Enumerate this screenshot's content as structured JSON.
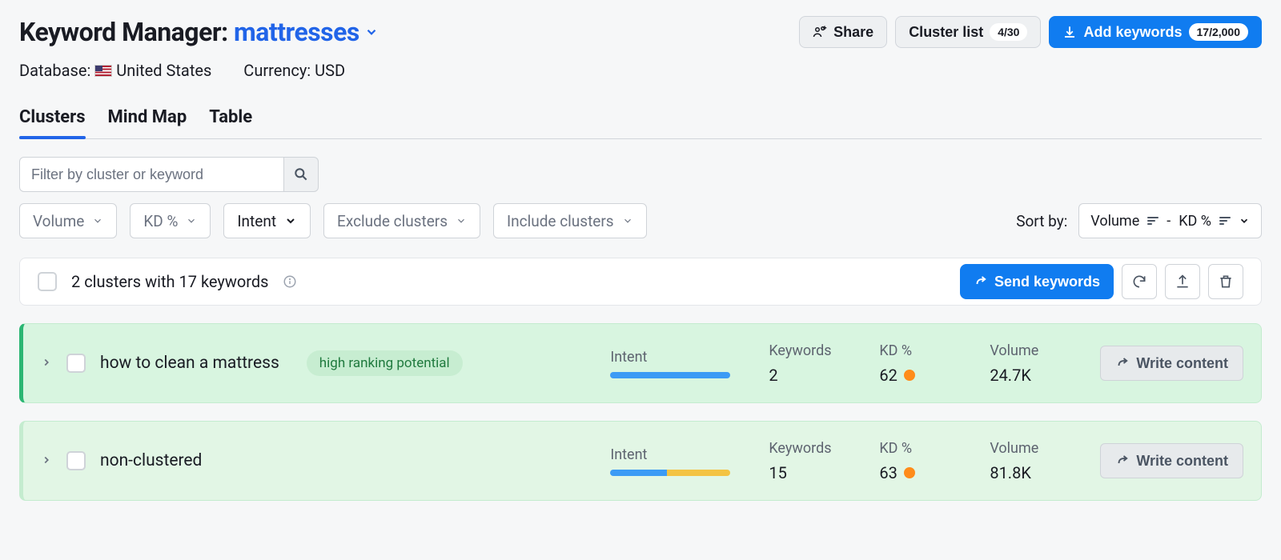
{
  "header": {
    "title_prefix": "Keyword Manager:",
    "keyword": "mattresses",
    "share_label": "Share",
    "cluster_list_label": "Cluster list",
    "cluster_list_count": "4/30",
    "add_keywords_label": "Add keywords",
    "add_keywords_count": "17/2,000"
  },
  "meta": {
    "database_label": "Database:",
    "database_value": "United States",
    "currency_label": "Currency:",
    "currency_value": "USD"
  },
  "tabs": {
    "items": [
      "Clusters",
      "Mind Map",
      "Table"
    ],
    "active_index": 0
  },
  "filters": {
    "search_placeholder": "Filter by cluster or keyword",
    "volume": "Volume",
    "kd": "KD %",
    "intent": "Intent",
    "exclude": "Exclude clusters",
    "include": "Include clusters",
    "sort_label": "Sort by:",
    "sort_value_1": "Volume",
    "sort_separator": "-",
    "sort_value_2": "KD %"
  },
  "summary": {
    "text": "2 clusters with 17 keywords",
    "send_label": "Send keywords"
  },
  "metric_labels": {
    "intent": "Intent",
    "keywords": "Keywords",
    "kd": "KD %",
    "volume": "Volume",
    "write": "Write content"
  },
  "colors": {
    "primary_blue": "#107cf0",
    "link_blue": "#2164e8",
    "row_green_bg": "#d8f5e0",
    "row_green_border": "#2bb673",
    "badge_bg": "#c7edd1",
    "badge_fg": "#1f7a3e",
    "kd_orange": "#ff8c1a",
    "intent_blue": "#3c9bf5",
    "intent_yellow": "#f3c343"
  },
  "clusters": [
    {
      "name": "how to clean a mattress",
      "badge": "high ranking potential",
      "intent_segments": [
        {
          "color": "#3c9bf5",
          "pct": 100
        }
      ],
      "keywords": "2",
      "kd": "62",
      "kd_color": "#ff8c1a",
      "volume": "24.7K"
    },
    {
      "name": "non-clustered",
      "badge": null,
      "intent_segments": [
        {
          "color": "#3c9bf5",
          "pct": 47
        },
        {
          "color": "#f3c343",
          "pct": 53
        }
      ],
      "keywords": "15",
      "kd": "63",
      "kd_color": "#ff8c1a",
      "volume": "81.8K"
    }
  ]
}
